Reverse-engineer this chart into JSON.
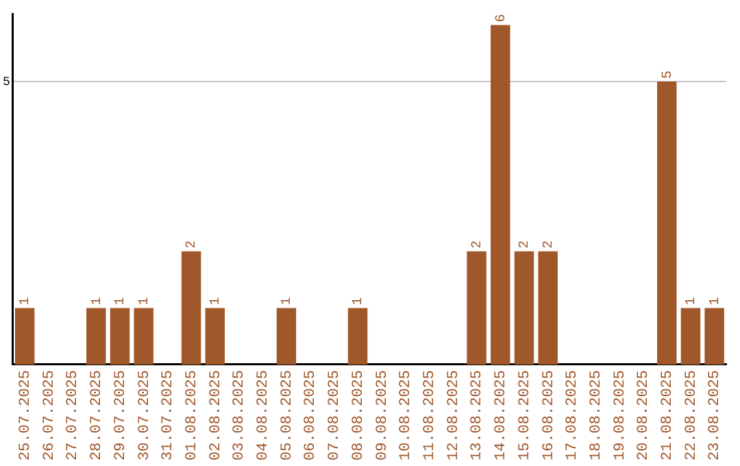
{
  "chart_data": {
    "type": "bar",
    "categories": [
      "25.07.2025",
      "26.07.2025",
      "27.07.2025",
      "28.07.2025",
      "29.07.2025",
      "30.07.2025",
      "31.07.2025",
      "01.08.2025",
      "02.08.2025",
      "03.08.2025",
      "04.08.2025",
      "05.08.2025",
      "06.08.2025",
      "07.08.2025",
      "08.08.2025",
      "09.08.2025",
      "10.08.2025",
      "11.08.2025",
      "12.08.2025",
      "13.08.2025",
      "14.08.2025",
      "15.08.2025",
      "16.08.2025",
      "17.08.2025",
      "18.08.2025",
      "19.08.2025",
      "20.08.2025",
      "21.08.2025",
      "22.08.2025",
      "23.08.2025"
    ],
    "values": [
      1,
      0,
      0,
      1,
      1,
      1,
      0,
      2,
      1,
      0,
      0,
      1,
      0,
      0,
      1,
      0,
      0,
      0,
      0,
      2,
      6,
      2,
      2,
      0,
      0,
      0,
      0,
      5,
      1,
      1
    ],
    "value_labels": [
      "1",
      null,
      null,
      "1",
      "1",
      "1",
      null,
      "2",
      "1",
      null,
      null,
      "1",
      null,
      null,
      "1",
      null,
      null,
      null,
      null,
      "2",
      "6",
      "2",
      "2",
      null,
      null,
      null,
      null,
      "5",
      "1",
      "1"
    ],
    "color": "#a0572a",
    "ylim": [
      0,
      6.2
    ],
    "yticks": [
      5
    ],
    "grid": "y",
    "legend": false
  }
}
